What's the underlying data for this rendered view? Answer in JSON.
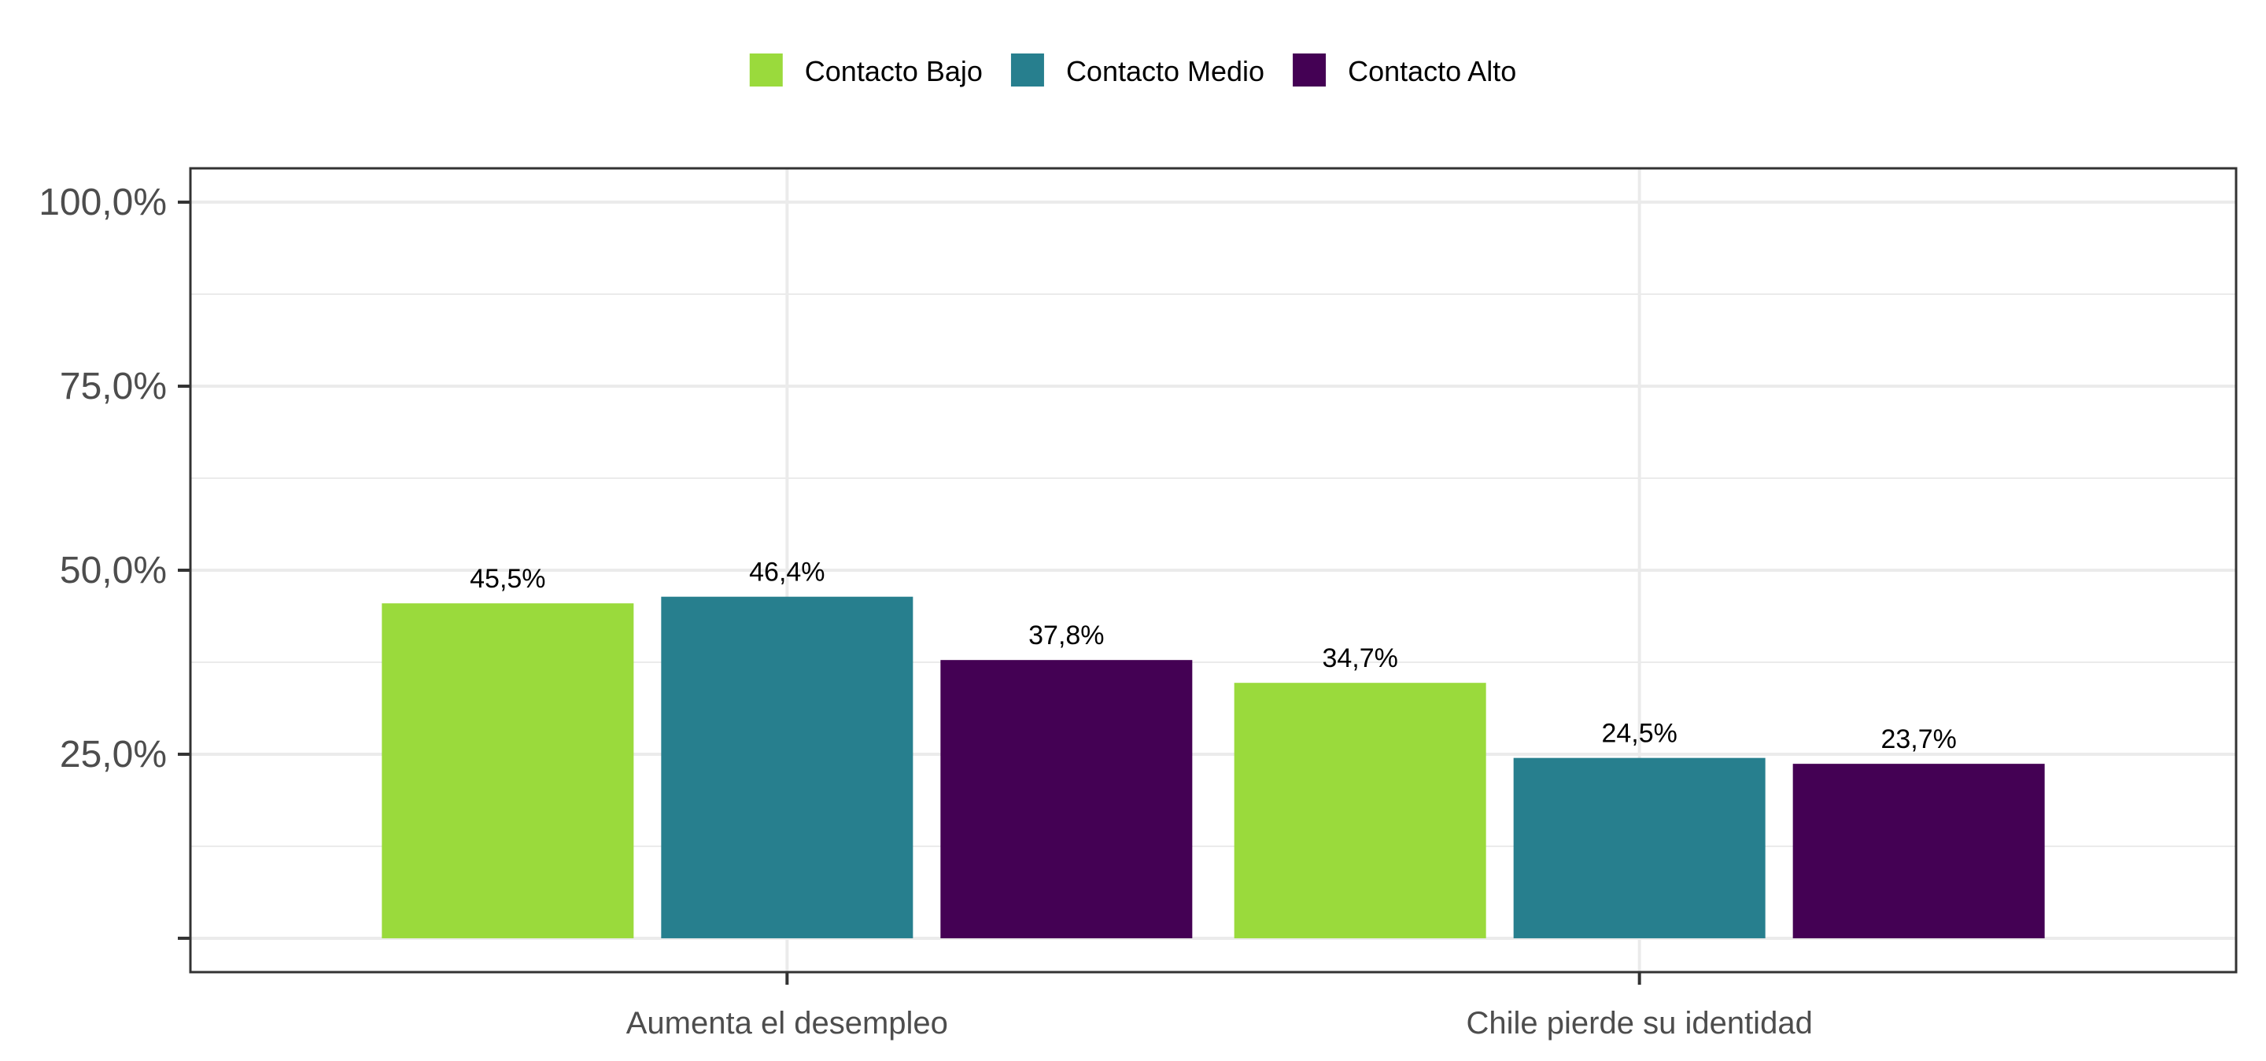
{
  "chart_data": {
    "type": "bar",
    "title": "",
    "xlabel": "",
    "ylabel": "",
    "categories": [
      "Aumenta el desempleo",
      "Chile pierde su identidad"
    ],
    "series": [
      {
        "name": "Contacto Bajo",
        "color": "#9ADA3C",
        "values": [
          45.5,
          34.7
        ],
        "labels": [
          "45,5%",
          "34,7%"
        ]
      },
      {
        "name": "Contacto Medio",
        "color": "#277F8E",
        "values": [
          46.4,
          24.5
        ],
        "labels": [
          "46,4%",
          "24,5%"
        ]
      },
      {
        "name": "Contacto Alto",
        "color": "#440154",
        "values": [
          37.8,
          23.7
        ],
        "labels": [
          "37,8%",
          "23,7%"
        ]
      }
    ],
    "ylim": [
      -4.6,
      104.6
    ],
    "y_ticks": [
      0,
      25,
      50,
      75,
      100
    ],
    "y_tick_labels": [
      "",
      "25,0%",
      "50,0%",
      "75,0%",
      "100,0%"
    ],
    "y_minor_gridlines": [
      12.5,
      37.5,
      62.5,
      87.5
    ],
    "grid": true,
    "legend_position": "top"
  }
}
